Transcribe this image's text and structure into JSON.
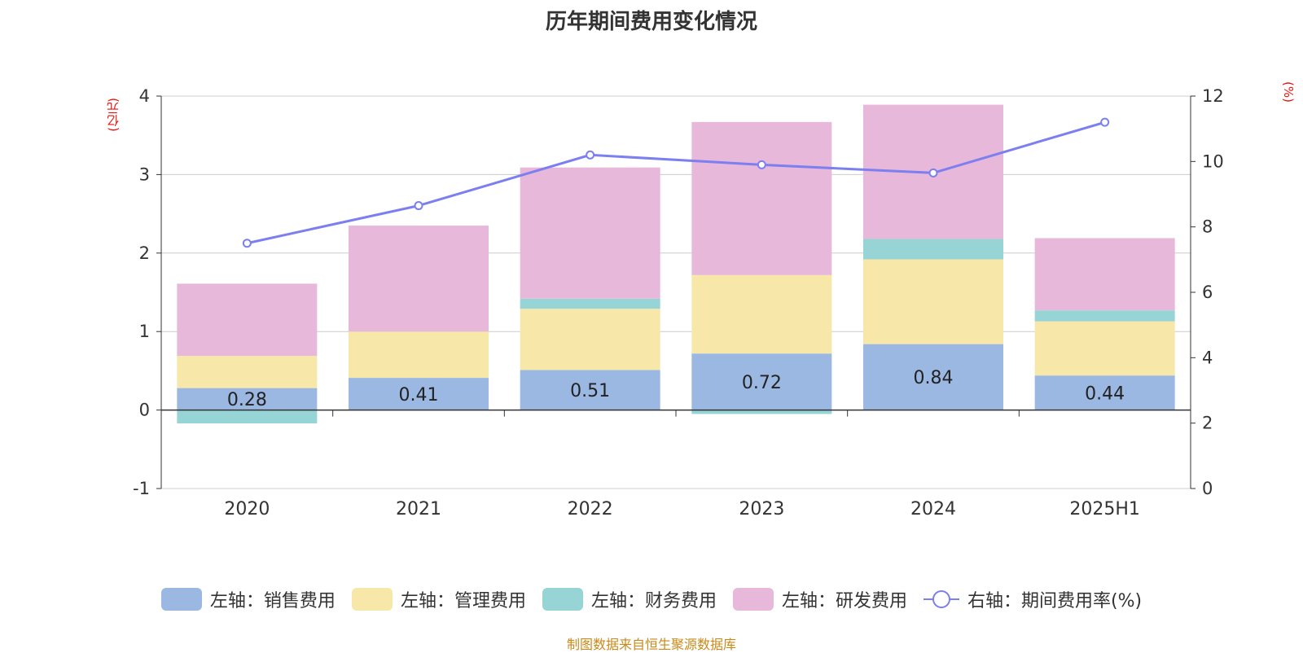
{
  "chart_data": {
    "type": "bar",
    "title": "历年期间费用变化情况",
    "left_axis_unit": "(亿元)",
    "right_axis_unit": "(%)",
    "categories": [
      "2020",
      "2021",
      "2022",
      "2023",
      "2024",
      "2025H1"
    ],
    "ylim_left": [
      -1,
      4
    ],
    "yticks_left": [
      "4",
      "3",
      "2",
      "1",
      "0",
      "-1"
    ],
    "ylim_right": [
      0,
      12
    ],
    "yticks_right": [
      "12",
      "10",
      "8",
      "6",
      "4",
      "2",
      "0"
    ],
    "grid": true,
    "legend_position": "bottom",
    "stacked": true,
    "series": [
      {
        "name": "左轴：销售费用",
        "type": "bar",
        "axis": "left",
        "color": "#9bb8e2",
        "values": [
          0.28,
          0.41,
          0.51,
          0.72,
          0.84,
          0.44
        ]
      },
      {
        "name": "左轴：管理费用",
        "type": "bar",
        "axis": "left",
        "color": "#f7e7a8",
        "values": [
          0.41,
          0.59,
          0.78,
          1.0,
          1.08,
          0.69
        ]
      },
      {
        "name": "左轴：财务费用",
        "type": "bar",
        "axis": "left",
        "color": "#96d4d6",
        "values": [
          -0.17,
          0.0,
          0.13,
          -0.05,
          0.26,
          0.14
        ]
      },
      {
        "name": "左轴：研发费用",
        "type": "bar",
        "axis": "left",
        "color": "#e7b8d9",
        "values": [
          0.92,
          1.35,
          1.67,
          1.95,
          1.71,
          0.92
        ]
      },
      {
        "name": "右轴：期间费用率(%)",
        "type": "line",
        "axis": "right",
        "color": "#7b7fef",
        "values": [
          7.5,
          8.65,
          10.2,
          9.9,
          9.65,
          11.2
        ]
      }
    ],
    "data_labels": [
      "0.28",
      "0.41",
      "0.51",
      "0.72",
      "0.84",
      "0.44"
    ]
  },
  "source_note": "制图数据来自恒生聚源数据库"
}
